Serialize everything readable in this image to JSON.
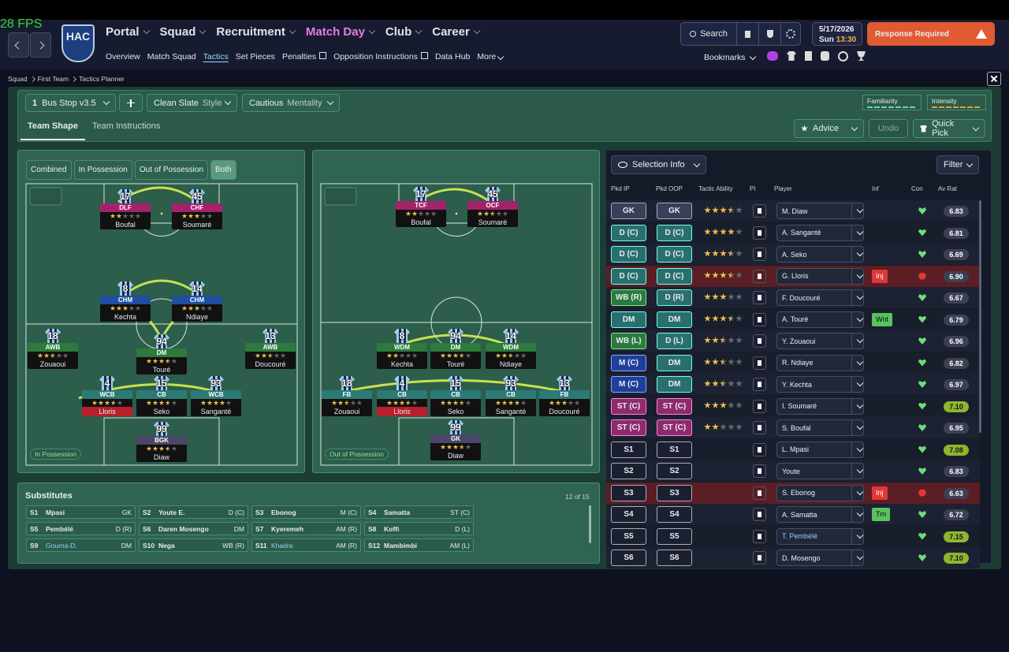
{
  "header": {
    "fps": "28 FPS",
    "club": "HAC",
    "nav": [
      "Portal",
      "Squad",
      "Recruitment",
      "Match Day",
      "Club",
      "Career"
    ],
    "subnav": [
      "Overview",
      "Match Squad",
      "Tactics",
      "Set Pieces",
      "Penalties",
      "Opposition Instructions",
      "Data Hub",
      "More"
    ],
    "search": "Search",
    "date": "5/17/2026",
    "day": "Sun",
    "time": "13:30",
    "response": "Response Required",
    "bookmarks": "Bookmarks"
  },
  "breadcrumb": [
    "Squad",
    "First Team",
    "Tactics Planner"
  ],
  "toolbar": {
    "tactic_number": "1",
    "tactic_name": "Bus Stop v3.5",
    "style_value": "Clean Slate",
    "style_label": "Style",
    "mentality_value": "Cautious",
    "mentality_label": "Mentality",
    "familiarity": "Familiarity",
    "intensity": "Intensity"
  },
  "tabs": [
    "Team Shape",
    "Team Instructions"
  ],
  "actions": {
    "advice": "Advice",
    "undo": "Undo",
    "quick_pick": "Quick Pick"
  },
  "filters": [
    "Combined",
    "In Possession",
    "Out of Possession",
    "Both"
  ],
  "pitches": [
    {
      "label": "In Possession",
      "players": [
        {
          "number": "17",
          "role": "DLF",
          "name": "Boufal",
          "stars": 2
        },
        {
          "number": "45",
          "role": "CHF",
          "name": "Soumaré",
          "stars": 3
        },
        {
          "number": "8",
          "role": "CHM",
          "name": "Kechta",
          "stars": 3
        },
        {
          "number": "14",
          "role": "CHM",
          "name": "Ndiaye",
          "stars": 3
        },
        {
          "number": "18",
          "role": "AWB",
          "name": "Zouaoui",
          "stars": 2.5
        },
        {
          "number": "94",
          "role": "DM",
          "name": "Touré",
          "stars": 3.5
        },
        {
          "number": "13",
          "role": "AWB",
          "name": "Doucouré",
          "stars": 2.5
        },
        {
          "number": "4",
          "role": "WCB",
          "name": "Lloris",
          "stars": 3.5,
          "injured": true
        },
        {
          "number": "15",
          "role": "CB",
          "name": "Seko",
          "stars": 3.5
        },
        {
          "number": "93",
          "role": "WCB",
          "name": "Sanganté",
          "stars": 4
        },
        {
          "number": "99",
          "role": "BGK",
          "name": "Diaw",
          "stars": 3.5
        }
      ]
    },
    {
      "label": "Out of Possession",
      "players": [
        {
          "number": "17",
          "role": "TCF",
          "name": "Boufal",
          "stars": 2
        },
        {
          "number": "45",
          "role": "OCF",
          "name": "Soumaré",
          "stars": 2.5
        },
        {
          "number": "8",
          "role": "WDM",
          "name": "Kechta",
          "stars": 2
        },
        {
          "number": "94",
          "role": "DM",
          "name": "Touré",
          "stars": 3.5
        },
        {
          "number": "14",
          "role": "WDM",
          "name": "Ndiaye",
          "stars": 2.5
        },
        {
          "number": "18",
          "role": "FB",
          "name": "Zouaoui",
          "stars": 2.5
        },
        {
          "number": "4",
          "role": "CB",
          "name": "Lloris",
          "stars": 3.5,
          "injured": true
        },
        {
          "number": "15",
          "role": "CB",
          "name": "Seko",
          "stars": 3.5
        },
        {
          "number": "93",
          "role": "CB",
          "name": "Sanganté",
          "stars": 4
        },
        {
          "number": "13",
          "role": "FB",
          "name": "Doucouré",
          "stars": 3
        },
        {
          "number": "99",
          "role": "GK",
          "name": "Diaw",
          "stars": 3.5
        }
      ]
    }
  ],
  "substitutes": {
    "title": "Substitutes",
    "count": "12 of 15",
    "players": [
      [
        "S1",
        "Mpasi",
        "GK"
      ],
      [
        "S2",
        "Youte E.",
        "D (C)"
      ],
      [
        "S3",
        "Ebonog",
        "M (C)"
      ],
      [
        "S4",
        "Samatta",
        "ST (C)"
      ],
      [
        "S5",
        "Pembélé",
        "D (R)"
      ],
      [
        "S6",
        "Daren Mosengo",
        "DM"
      ],
      [
        "S7",
        "Kyeremeh",
        "AM (R)"
      ],
      [
        "S8",
        "Koffi",
        "D (L)"
      ],
      [
        "S9",
        "Gourna-D.",
        "DM"
      ],
      [
        "S10",
        "Nega",
        "WB (R)"
      ],
      [
        "S11",
        "Khadra",
        "AM (R)"
      ],
      [
        "S12",
        "Mambimbi",
        "AM (L)"
      ]
    ]
  },
  "selection": {
    "selector": "Selection Info",
    "filter": "Filter",
    "columns": [
      "Pkd IP",
      "Pkd OOP",
      "Tactic Ability",
      "PI",
      "Player",
      "Inf",
      "Con",
      "Av Rat"
    ],
    "rows": [
      {
        "ip": "GK",
        "oop": "GK",
        "stars": 3.5,
        "player": "M. Diaw",
        "inf": null,
        "rating": "6.83"
      },
      {
        "ip": "D (C)",
        "oop": "D (C)",
        "stars": 4,
        "player": "A. Sanganté",
        "inf": null,
        "rating": "6.81"
      },
      {
        "ip": "D (C)",
        "oop": "D (C)",
        "stars": 3.5,
        "player": "A. Seko",
        "inf": null,
        "rating": "6.69"
      },
      {
        "ip": "D (C)",
        "oop": "D (C)",
        "stars": 3.5,
        "player": "G. Lloris",
        "inf": "Inj",
        "rating": "6.90"
      },
      {
        "ip": "WB (R)",
        "oop": "D (R)",
        "stars": 3,
        "player": "F. Doucouré",
        "inf": null,
        "rating": "6.67"
      },
      {
        "ip": "DM",
        "oop": "DM",
        "stars": 3.5,
        "player": "A. Touré",
        "inf": "Wnt",
        "rating": "6.79"
      },
      {
        "ip": "WB (L)",
        "oop": "D (L)",
        "stars": 2.5,
        "player": "Y. Zouaoui",
        "inf": null,
        "rating": "6.96"
      },
      {
        "ip": "M (C)",
        "oop": "DM",
        "stars": 2.5,
        "player": "R. Ndiaye",
        "inf": null,
        "rating": "6.82"
      },
      {
        "ip": "M (C)",
        "oop": "DM",
        "stars": 2.5,
        "player": "Y. Kechta",
        "inf": null,
        "rating": "6.97"
      },
      {
        "ip": "ST (C)",
        "oop": "ST (C)",
        "stars": 3,
        "player": "I. Soumaré",
        "inf": null,
        "rating": "7.10"
      },
      {
        "ip": "ST (C)",
        "oop": "ST (C)",
        "stars": 2,
        "player": "S. Boufal",
        "inf": null,
        "rating": "6.95"
      },
      {
        "ip": "S1",
        "oop": "S1",
        "stars": null,
        "player": "L. Mpasi",
        "inf": null,
        "rating": "7.08"
      },
      {
        "ip": "S2",
        "oop": "S2",
        "stars": null,
        "player": "Youte",
        "inf": null,
        "rating": "6.83"
      },
      {
        "ip": "S3",
        "oop": "S3",
        "stars": null,
        "player": "S. Ebonog",
        "inf": "Inj",
        "rating": "6.63"
      },
      {
        "ip": "S4",
        "oop": "S4",
        "stars": null,
        "player": "A. Samatta",
        "inf": "Trn",
        "rating": "6.72"
      },
      {
        "ip": "S5",
        "oop": "S5",
        "stars": null,
        "player": "T. Pembélé",
        "inf": null,
        "rating": "7.15"
      },
      {
        "ip": "S6",
        "oop": "S6",
        "stars": null,
        "player": "D. Mosengo",
        "inf": null,
        "rating": "7.10"
      }
    ]
  }
}
